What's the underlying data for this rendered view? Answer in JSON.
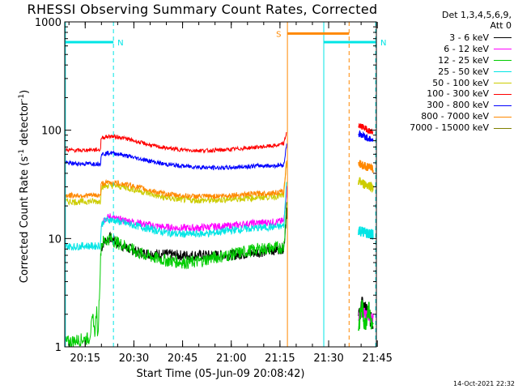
{
  "chart_data": {
    "type": "line",
    "title": "RHESSI Observing Summary Count Rates, Corrected",
    "xlabel": "Start Time (05-Jun-09 20:08:42)",
    "ylabel": {
      "prefix": "Corrected Count Rate (s",
      "sup1": "-1",
      "mid": " detector",
      "sup2": "-1",
      "suffix": ")"
    },
    "x_unit": "minutes after 20:08:42",
    "xlim": [
      0,
      96
    ],
    "ylim": [
      1,
      1000
    ],
    "yscale": "log",
    "x_ticks": [
      {
        "label": "20:15",
        "value": 6.3
      },
      {
        "label": "20:30",
        "value": 21.3
      },
      {
        "label": "20:45",
        "value": 36.3
      },
      {
        "label": "21:00",
        "value": 51.3
      },
      {
        "label": "21:15",
        "value": 66.3
      },
      {
        "label": "21:30",
        "value": 81.3
      },
      {
        "label": "21:45",
        "value": 96.3
      }
    ],
    "y_ticks": [
      {
        "label": "1",
        "value": 1
      },
      {
        "label": "10",
        "value": 10
      },
      {
        "label": "100",
        "value": 100
      },
      {
        "label": "1000",
        "value": 1000
      }
    ],
    "legend_header": [
      "Det 1,3,4,5,6,9,",
      "Att 0"
    ],
    "legend_position": "right",
    "series": [
      {
        "name": "3 - 6 keV",
        "color": "#000000",
        "points": [
          [
            11.2,
            8.0
          ],
          [
            12,
            9.2
          ],
          [
            13,
            9.8
          ],
          [
            14,
            10.2
          ],
          [
            15,
            9.6
          ],
          [
            17,
            8.8
          ],
          [
            20,
            8.0
          ],
          [
            23,
            7.4
          ],
          [
            26,
            7.2
          ],
          [
            30,
            7.2
          ],
          [
            35,
            7.0
          ],
          [
            40,
            7.0
          ],
          [
            45,
            7.0
          ],
          [
            50,
            7.0
          ],
          [
            55,
            7.2
          ],
          [
            60,
            7.5
          ],
          [
            64,
            7.8
          ],
          [
            67.5,
            8.2
          ],
          [
            68.5,
            20
          ]
        ],
        "post": [
          [
            90.5,
            1.8
          ],
          [
            91.5,
            2.5
          ],
          [
            92.5,
            2.2
          ],
          [
            93.5,
            2.0
          ],
          [
            95,
            1.6
          ]
        ]
      },
      {
        "name": "6 - 12 keV",
        "color": "#ff00ff",
        "points": [
          [
            11.2,
            13.5
          ],
          [
            12,
            15.0
          ],
          [
            14,
            16.0
          ],
          [
            16,
            15.0
          ],
          [
            20,
            14.5
          ],
          [
            25,
            13.5
          ],
          [
            30,
            12.8
          ],
          [
            35,
            12.5
          ],
          [
            40,
            12.5
          ],
          [
            45,
            12.8
          ],
          [
            50,
            13.0
          ],
          [
            55,
            13.5
          ],
          [
            60,
            14.0
          ],
          [
            65,
            14.2
          ],
          [
            67.5,
            14.5
          ],
          [
            68.5,
            30
          ]
        ],
        "post": [
          [
            90.5,
            1.9
          ],
          [
            91.5,
            2.1
          ],
          [
            93,
            2.0
          ],
          [
            95,
            1.8
          ]
        ]
      },
      {
        "name": "12 - 25 keV",
        "color": "#00cc00",
        "points": [
          [
            0,
            1.1
          ],
          [
            7.5,
            1.2
          ],
          [
            8.8,
            1.9
          ],
          [
            9.2,
            1.3
          ],
          [
            9.8,
            2.2
          ],
          [
            10.2,
            1.2
          ],
          [
            11.2,
            8.8
          ],
          [
            12,
            9.5
          ],
          [
            14,
            10.0
          ],
          [
            16,
            9.2
          ],
          [
            19,
            8.5
          ],
          [
            22,
            7.5
          ],
          [
            25,
            7.0
          ],
          [
            28,
            6.6
          ],
          [
            31,
            6.3
          ],
          [
            35,
            6.1
          ],
          [
            38,
            6.0
          ],
          [
            42,
            6.2
          ],
          [
            45,
            6.6
          ],
          [
            50,
            7.0
          ],
          [
            55,
            7.5
          ],
          [
            60,
            8.0
          ],
          [
            65,
            8.2
          ],
          [
            67.5,
            8.3
          ],
          [
            68.5,
            25
          ]
        ],
        "post": [
          [
            90.5,
            1.5
          ],
          [
            91.5,
            2.4
          ],
          [
            92.5,
            1.6
          ],
          [
            93.5,
            2.3
          ],
          [
            95,
            1.4
          ]
        ]
      },
      {
        "name": "25 - 50 keV",
        "color": "#00e5e5",
        "points": [
          [
            0,
            8.5
          ],
          [
            3,
            8.4
          ],
          [
            6,
            8.6
          ],
          [
            9,
            8.5
          ],
          [
            11,
            8.6
          ],
          [
            11.2,
            13.0
          ],
          [
            12,
            14.5
          ],
          [
            14,
            15.0
          ],
          [
            16,
            14.5
          ],
          [
            20,
            13.5
          ],
          [
            25,
            12.5
          ],
          [
            30,
            11.5
          ],
          [
            35,
            11.0
          ],
          [
            40,
            11.0
          ],
          [
            45,
            11.2
          ],
          [
            50,
            11.8
          ],
          [
            55,
            12.2
          ],
          [
            60,
            12.6
          ],
          [
            65,
            12.8
          ],
          [
            67.5,
            13.0
          ],
          [
            68.5,
            40
          ]
        ],
        "post": [
          [
            90.5,
            12.0
          ],
          [
            92,
            11.5
          ],
          [
            94,
            11.0
          ],
          [
            95,
            10.8
          ]
        ]
      },
      {
        "name": "50 - 100 keV",
        "color": "#cccc00",
        "points": [
          [
            0,
            22.0
          ],
          [
            4,
            21.8
          ],
          [
            8,
            22.0
          ],
          [
            11,
            22.0
          ],
          [
            11.2,
            30.0
          ],
          [
            14,
            31.0
          ],
          [
            18,
            30.0
          ],
          [
            22,
            28.0
          ],
          [
            26,
            26.0
          ],
          [
            30,
            24.0
          ],
          [
            35,
            23.0
          ],
          [
            40,
            22.5
          ],
          [
            45,
            22.5
          ],
          [
            50,
            23.0
          ],
          [
            55,
            23.5
          ],
          [
            60,
            24.0
          ],
          [
            65,
            24.5
          ],
          [
            67.5,
            25.0
          ],
          [
            68.5,
            55
          ]
        ],
        "post": [
          [
            90.5,
            34.0
          ],
          [
            92,
            32.0
          ],
          [
            94,
            31.0
          ],
          [
            95,
            30.0
          ]
        ]
      },
      {
        "name": "100 - 300 keV",
        "color": "#ff0000",
        "points": [
          [
            0,
            66
          ],
          [
            4,
            65
          ],
          [
            8,
            66
          ],
          [
            11,
            66
          ],
          [
            11.2,
            85
          ],
          [
            14,
            88
          ],
          [
            17,
            86
          ],
          [
            20,
            82
          ],
          [
            24,
            76
          ],
          [
            28,
            71
          ],
          [
            32,
            68
          ],
          [
            36,
            66
          ],
          [
            40,
            65
          ],
          [
            45,
            65
          ],
          [
            50,
            66
          ],
          [
            55,
            68
          ],
          [
            60,
            70
          ],
          [
            65,
            72
          ],
          [
            67.5,
            75
          ],
          [
            68.5,
            100
          ]
        ],
        "post": [
          [
            90.5,
            110
          ],
          [
            91.5,
            108
          ],
          [
            93,
            102
          ],
          [
            95,
            95
          ]
        ]
      },
      {
        "name": "300 - 800 keV",
        "color": "#0000ff",
        "points": [
          [
            0,
            50
          ],
          [
            4,
            49
          ],
          [
            8,
            49
          ],
          [
            11,
            49
          ],
          [
            11.2,
            60
          ],
          [
            14,
            62
          ],
          [
            17,
            60
          ],
          [
            20,
            57
          ],
          [
            25,
            53
          ],
          [
            30,
            49
          ],
          [
            35,
            47
          ],
          [
            40,
            46
          ],
          [
            45,
            45
          ],
          [
            50,
            45
          ],
          [
            55,
            46
          ],
          [
            60,
            47
          ],
          [
            65,
            47
          ],
          [
            67.5,
            48
          ],
          [
            68.5,
            80
          ]
        ],
        "post": [
          [
            90.5,
            93
          ],
          [
            92,
            88
          ],
          [
            94,
            83
          ],
          [
            95,
            80
          ]
        ]
      },
      {
        "name": "800 - 7000 keV",
        "color": "#ff8800",
        "points": [
          [
            0,
            25
          ],
          [
            4,
            25
          ],
          [
            8,
            25
          ],
          [
            11,
            25
          ],
          [
            11.2,
            32
          ],
          [
            14,
            33
          ],
          [
            18,
            32
          ],
          [
            22,
            30
          ],
          [
            26,
            28
          ],
          [
            30,
            26
          ],
          [
            35,
            25
          ],
          [
            40,
            24.5
          ],
          [
            45,
            24.5
          ],
          [
            50,
            25
          ],
          [
            55,
            25.5
          ],
          [
            60,
            26
          ],
          [
            65,
            26.5
          ],
          [
            67.5,
            27
          ],
          [
            68.5,
            60
          ]
        ],
        "post": [
          [
            90.5,
            50
          ],
          [
            92,
            47
          ],
          [
            94,
            45
          ],
          [
            95,
            44
          ]
        ]
      },
      {
        "name": "7000 - 15000 keV",
        "color": "#808000",
        "points": [],
        "post": []
      }
    ],
    "annotations": [
      {
        "label": "N",
        "color": "#00e5e5",
        "kind": "night",
        "x_start": 0,
        "x_end": 15,
        "level": 650
      },
      {
        "label": "N",
        "color": "#00e5e5",
        "kind": "night",
        "x_start": 79.8,
        "x_end": 96,
        "level": 650
      },
      {
        "label": "S",
        "color": "#ff8800",
        "kind": "saa",
        "x_start": 68.6,
        "x_end": 87.6,
        "level": 780
      }
    ],
    "vertical_lines": [
      {
        "x": 0.2,
        "color": "#00e5e5",
        "style": "solid"
      },
      {
        "x": 15.0,
        "color": "#00e5e5",
        "style": "dashed"
      },
      {
        "x": 68.6,
        "color": "#ff8800",
        "style": "solid"
      },
      {
        "x": 79.8,
        "color": "#00e5e5",
        "style": "solid"
      },
      {
        "x": 87.6,
        "color": "#ff8800",
        "style": "dashed"
      },
      {
        "x": 95.8,
        "color": "#00e5e5",
        "style": "dashed"
      }
    ],
    "gap": [
      68.8,
      90.2
    ]
  },
  "footer_stamp": "14-Oct-2021 22:32"
}
